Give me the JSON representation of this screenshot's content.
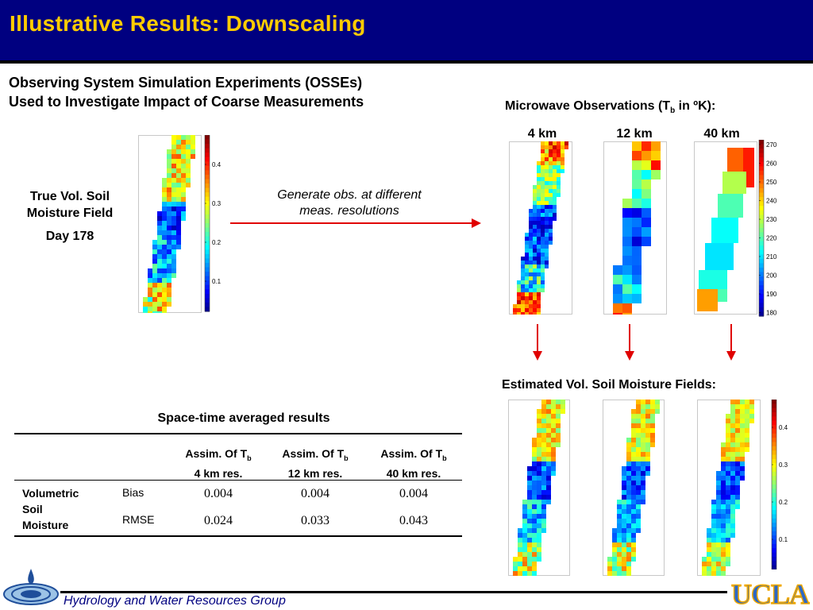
{
  "header": {
    "title": "Illustrative Results: Downscaling"
  },
  "subtitle": {
    "line1": "Observing System Simulation Experiments (OSSEs)",
    "line2": "Used to Investigate Impact of Coarse Measurements"
  },
  "true_field": {
    "line1": "True Vol. Soil",
    "line2": "Moisture Field",
    "day": "Day 178"
  },
  "note": {
    "line1": "Generate obs. at different",
    "line2": "meas. resolutions"
  },
  "microwave": {
    "title_pre": "Microwave Observations (T",
    "title_sub": "b",
    "title_post": " in ºK):",
    "res": [
      "4 km",
      "12 km",
      "40 km"
    ]
  },
  "moisture_ticks": [
    "0.4",
    "0.3",
    "0.2",
    "0.1"
  ],
  "tb_ticks": [
    "270",
    "260",
    "250",
    "240",
    "230",
    "220",
    "210",
    "200",
    "190",
    "180"
  ],
  "estimated": {
    "title": "Estimated Vol. Soil Moisture Fields:"
  },
  "table": {
    "title": "Space-time averaged results",
    "columns": [
      {
        "pre": "Assim. Of T",
        "sub": "b",
        "res": "4 km res."
      },
      {
        "pre": "Assim. Of T",
        "sub": "b",
        "res": "12 km res."
      },
      {
        "pre": "Assim. Of T",
        "sub": "b",
        "res": "40 km res."
      }
    ],
    "row_group": [
      "Volumetric",
      "Soil",
      "Moisture"
    ],
    "rows": [
      {
        "metric": "Bias",
        "values": [
          "0.004",
          "0.004",
          "0.004"
        ]
      },
      {
        "metric": "RMSE",
        "values": [
          "0.024",
          "0.033",
          "0.043"
        ]
      }
    ]
  },
  "footer": {
    "group": "Hydrology and Water Resources Group",
    "logo": "UCLA"
  },
  "colors": {
    "header_bg": "#000080",
    "title": "#FFCC00",
    "arrow": "#E00000",
    "footer_text": "#000080",
    "ucla_blue": "#2D68C4",
    "ucla_gold": "#F2A900"
  }
}
